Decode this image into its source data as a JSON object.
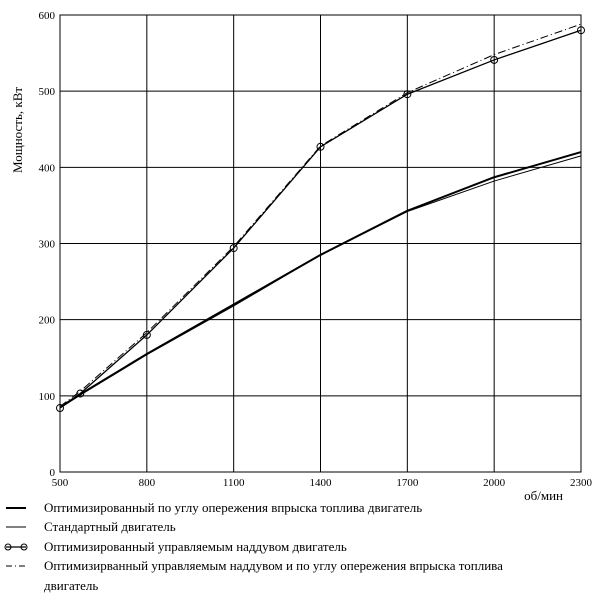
{
  "chart_data": {
    "type": "line",
    "xlabel": "об/мин",
    "ylabel": "Мощность, кВт",
    "xlim": [
      500,
      2300
    ],
    "ylim": [
      0,
      600
    ],
    "x_ticks": [
      500,
      800,
      1100,
      1400,
      1700,
      2000,
      2300
    ],
    "y_ticks": [
      0,
      100,
      200,
      300,
      400,
      500,
      600
    ],
    "grid": true,
    "legend_position": "bottom",
    "series": [
      {
        "name": "Оптимизированный по углу опережения впрыска топлива двигатель",
        "style": "thick-solid",
        "x": [
          500,
          570,
          800,
          1100,
          1400,
          1700,
          2000,
          2300
        ],
        "y": [
          85,
          102,
          155,
          220,
          285,
          343,
          387,
          420
        ]
      },
      {
        "name": "Стандартный двигатель",
        "style": "thin-solid",
        "x": [
          500,
          570,
          800,
          1100,
          1400,
          1700,
          2000,
          2300
        ],
        "y": [
          84,
          101,
          154,
          218,
          285,
          342,
          382,
          415
        ]
      },
      {
        "name": "Оптимизированный управляемым наддувом двигатель",
        "style": "solid-circle-markers",
        "x": [
          500,
          570,
          800,
          1100,
          1400,
          1700,
          2000,
          2300
        ],
        "y": [
          84,
          103,
          180,
          294,
          427,
          496,
          541,
          580
        ]
      },
      {
        "name": "Оптимизирванный управляемым наддувом и по углу опережения впрыска топлива двигатель",
        "style": "dash-dot",
        "x": [
          500,
          570,
          800,
          1100,
          1400,
          1700,
          2000,
          2300
        ],
        "y": [
          86,
          106,
          183,
          296,
          428,
          498,
          548,
          588
        ]
      }
    ]
  },
  "legend": {
    "line1": "Оптимизированный по углу опережения впрыска топлива двигатель",
    "line2": "Стандартный двигатель",
    "line3": "Оптимизированный управляемым наддувом двигатель",
    "line4a": "Оптимизирванный управляемым наддувом и по углу опережения впрыска топлива",
    "line4b": "двигатель"
  }
}
